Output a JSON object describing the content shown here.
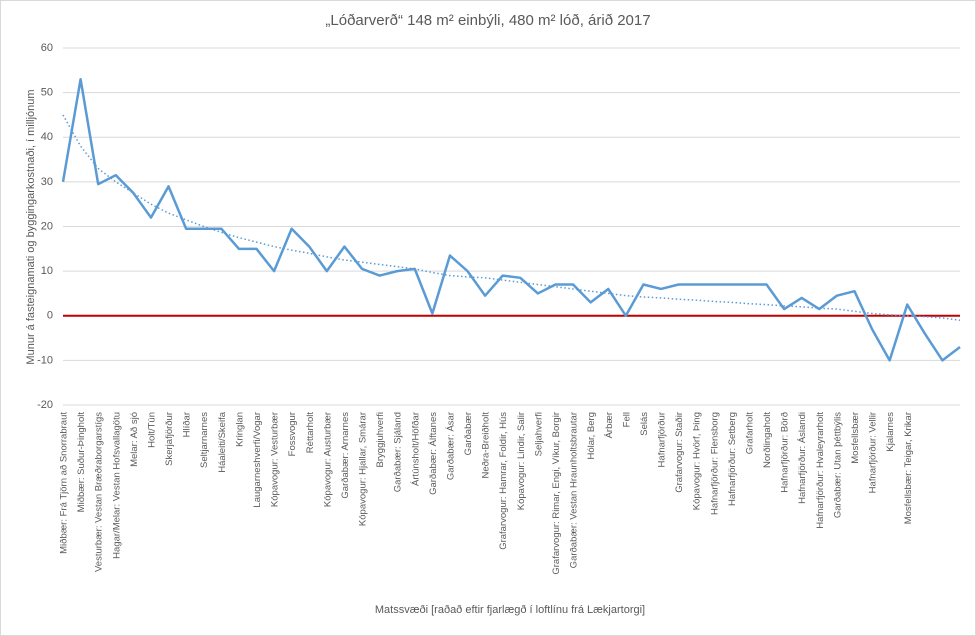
{
  "chart_data": {
    "type": "line",
    "title": "„Lóðarverð“ 148 m² einbýli, 480 m² lóð, árið 2017",
    "y_label": "Munur á fasteignamati og byggingarkostnaði, í milljónum",
    "x_label": "Matssvæði  [raðað eftir fjarlægð í loftlínu frá Lækjartorgi]",
    "categories": [
      "Miðbær: Frá Tjörn að Snorrabraut",
      "Miðbær: Suður-Þingholt",
      "Vesturbær: Vestan Bræðraborgarstígs",
      "Hagar/Melar: Vestan Hofsvallagötu",
      "Melar: Að sjó",
      "Holt/Tún",
      "Skerjafjörður",
      "Hlíðar",
      "Seltjarnarnes",
      "Háaleiti/Skeifa",
      "Kringlan",
      "Laugarneshverfi/Vogar",
      "Kópavogur: Vesturbær",
      "Fossvogur",
      "Réttarholt",
      "Kópavogur: Austurbær",
      "Garðabær: Arnarnes",
      "Kópavogur: Hjallar, Smárar",
      "Bryggjuhverfi",
      "Garðabær: Sjáland",
      "Ártúnsholt/Höfðar",
      "Garðabær: Álftanes",
      "Garðabær: Ásar",
      "Garðabær",
      "Neðra-Breiðholt",
      "Grafarvogur: Hamrar, Foldir, Hús",
      "Kópavogur: Lindir, Salir",
      "Seljahverfi",
      "Grafarvogur: Rimar, Engi, Víkur, Borgir",
      "Garðabær: Vestan Hraunholtsbrautar",
      "Hólar, Berg",
      "Árbær",
      "Fell",
      "Selás",
      "Hafnarfjörður",
      "Grafarvogur: Staðir",
      "Kópavogur: Hvörf, Þing",
      "Hafnarfjörður: Flensborg",
      "Hafnarfjörður: Setberg",
      "Grafarholt",
      "Norðlingaholt",
      "Hafnarfjörður: Börð",
      "Hafnarfjörður: Áslandi",
      "Hafnarfjörður: Hvaleyrarholt",
      "Garðabær: Utan þéttbýlis",
      "Mosfellsbær",
      "Hafnarfjörður: Vellir",
      "Kjalarnes",
      "Mosfellsbær: Teigar, Krikar",
      null,
      null,
      null
    ],
    "values": [
      30,
      53,
      29.5,
      31.5,
      27.5,
      22,
      29,
      19.5,
      19.5,
      19.5,
      15,
      15,
      10,
      19.5,
      15.5,
      10,
      15.5,
      10.5,
      9,
      10,
      10.5,
      0.5,
      13.5,
      10,
      4.5,
      9,
      8.5,
      5,
      7,
      7,
      3,
      6,
      0,
      7,
      6,
      7,
      7,
      7,
      7,
      7,
      7,
      1.5,
      4,
      1.5,
      4.5,
      5.5,
      -3,
      -10,
      2.5,
      -4,
      -10,
      -7
    ],
    "color": "#5b9bd5",
    "trend": [
      45,
      38,
      33,
      30,
      27.5,
      25,
      23,
      21.5,
      20,
      18.7,
      17.5,
      16.5,
      15.5,
      14.7,
      14,
      13.2,
      12.5,
      12,
      11.5,
      11,
      10.5,
      9.7,
      9,
      8.7,
      8.5,
      8,
      7.5,
      7,
      6.5,
      6,
      5.5,
      5,
      4.5,
      4.2,
      4,
      3.7,
      3.5,
      3.2,
      3,
      2.7,
      2.5,
      2.2,
      2,
      1.7,
      1.5,
      1,
      0.5,
      0.2,
      0,
      -0.2,
      -0.5,
      -1
    ],
    "trend_color": "#5b9bd5",
    "zero_line_color": "#c00000",
    "ylim": [
      -20,
      60
    ],
    "yticks": [
      -20,
      -10,
      0,
      10,
      20,
      30,
      40,
      50,
      60
    ],
    "grid": true
  }
}
